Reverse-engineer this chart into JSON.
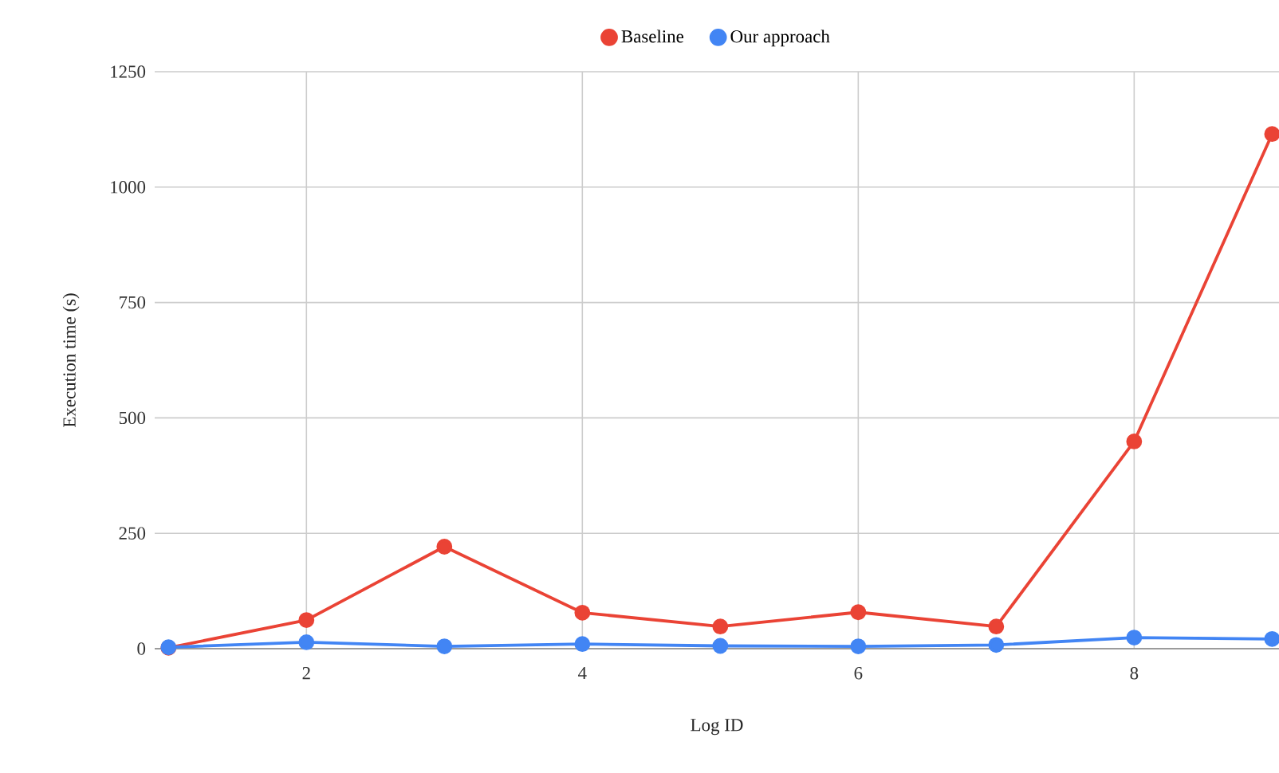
{
  "chart_data": {
    "type": "line",
    "xlabel": "Log ID",
    "ylabel": "Execution time (s)",
    "x": [
      1,
      2,
      3,
      4,
      5,
      6,
      7,
      8,
      9
    ],
    "series": [
      {
        "name": "Baseline",
        "color": "#ea4335",
        "values": [
          2,
          62,
          221,
          78,
          48,
          79,
          48,
          449,
          1115
        ]
      },
      {
        "name": "Our approach",
        "color": "#4285f4",
        "values": [
          3,
          14,
          5,
          10,
          6,
          5,
          8,
          24,
          21
        ]
      }
    ],
    "xlim": [
      0.9,
      9.05
    ],
    "ylim": [
      0,
      1250
    ],
    "xticks": [
      2,
      4,
      6,
      8
    ],
    "yticks": [
      0,
      250,
      500,
      750,
      1000,
      1250
    ],
    "grid": true,
    "legend": "top",
    "marker": "circle",
    "line_style": "solid"
  }
}
